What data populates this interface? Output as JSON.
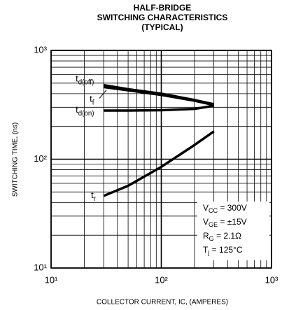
{
  "chart_data": {
    "type": "line",
    "title": [
      "HALF-BRIDGE",
      "SWITCHING CHARACTERISTICS",
      "(TYPICAL)"
    ],
    "x_label": "COLLECTOR CURRENT, IC, (AMPERES)",
    "y_label": "SWITCHING TIME, (ns)",
    "log_x": true,
    "log_y": true,
    "grid": true,
    "xlim": [
      10,
      1000
    ],
    "ylim": [
      10,
      1000
    ],
    "xticks": [
      {
        "value": 10,
        "label": "10¹"
      },
      {
        "value": 100,
        "label": "10²"
      },
      {
        "value": 1000,
        "label": "10³"
      }
    ],
    "yticks": [
      {
        "value": 10,
        "label": "10¹"
      },
      {
        "value": 100,
        "label": "10²"
      },
      {
        "value": 1000,
        "label": "10³"
      }
    ],
    "xminor": [
      20,
      30,
      40,
      50,
      60,
      70,
      80,
      90,
      200,
      300,
      400,
      500,
      600,
      700,
      800,
      900
    ],
    "yminor": [
      20,
      30,
      40,
      50,
      60,
      70,
      80,
      90,
      200,
      300,
      400,
      500,
      600,
      700,
      800,
      900
    ],
    "x": [
      30,
      50,
      100,
      200,
      300
    ],
    "series": [
      {
        "name": "td(off)",
        "color": "#000000",
        "values": [
          480,
          440,
          400,
          350,
          320
        ]
      },
      {
        "name": "tf",
        "color": "#000000",
        "values": [
          460,
          430,
          390,
          345,
          315
        ]
      },
      {
        "name": "td(on)",
        "color": "#000000",
        "values": [
          280,
          280,
          282,
          290,
          310
        ]
      },
      {
        "name": "tr",
        "color": "#000000",
        "values": [
          46,
          57,
          85,
          135,
          180
        ]
      }
    ],
    "annotations": [
      "VCC = 300V",
      "VGE = ±15V",
      "RG = 2.1Ω",
      "Tj = 125°C"
    ]
  }
}
